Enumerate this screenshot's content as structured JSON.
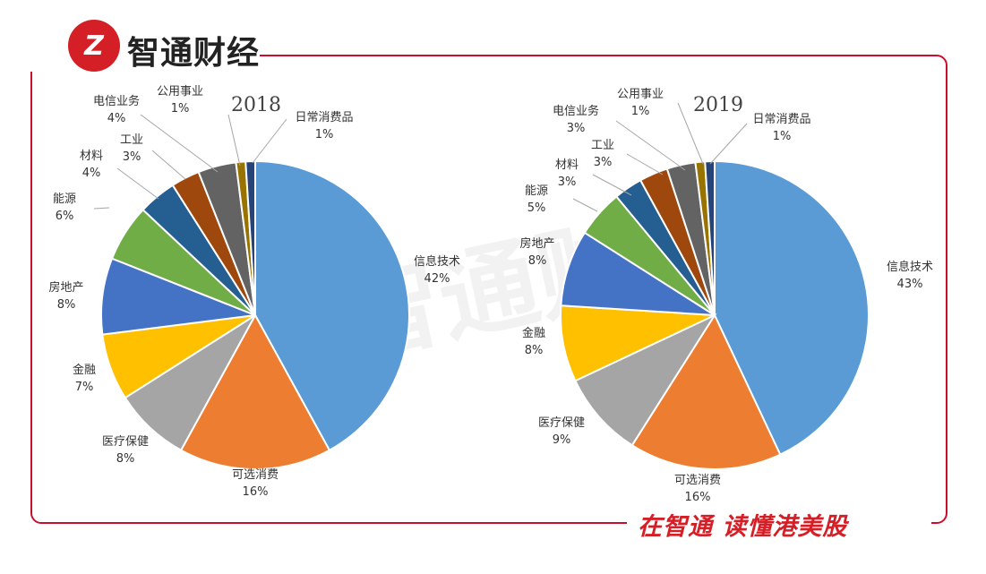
{
  "brand": {
    "logo_text": "Z",
    "name": "智通财经",
    "slogan": "在智通 读懂港美股"
  },
  "watermark": "智通财经",
  "chart_data": [
    {
      "type": "pie",
      "title": "2018",
      "slices": [
        {
          "label": "信息技术",
          "value": 42,
          "pct": "42%",
          "color": "#5b9bd5"
        },
        {
          "label": "可选消费",
          "value": 16,
          "pct": "16%",
          "color": "#ed7d31"
        },
        {
          "label": "医疗保健",
          "value": 8,
          "pct": "8%",
          "color": "#a5a5a5"
        },
        {
          "label": "金融",
          "value": 7,
          "pct": "7%",
          "color": "#ffc000"
        },
        {
          "label": "房地产",
          "value": 8,
          "pct": "8%",
          "color": "#4472c4"
        },
        {
          "label": "能源",
          "value": 6,
          "pct": "6%",
          "color": "#70ad47"
        },
        {
          "label": "材料",
          "value": 4,
          "pct": "4%",
          "color": "#255e91"
        },
        {
          "label": "工业",
          "value": 3,
          "pct": "3%",
          "color": "#9e480e"
        },
        {
          "label": "电信业务",
          "value": 4,
          "pct": "4%",
          "color": "#636363"
        },
        {
          "label": "公用事业",
          "value": 1,
          "pct": "1%",
          "color": "#997300"
        },
        {
          "label": "日常消费品",
          "value": 1,
          "pct": "1%",
          "color": "#264478"
        }
      ]
    },
    {
      "type": "pie",
      "title": "2019",
      "slices": [
        {
          "label": "信息技术",
          "value": 43,
          "pct": "43%",
          "color": "#5b9bd5"
        },
        {
          "label": "可选消费",
          "value": 16,
          "pct": "16%",
          "color": "#ed7d31"
        },
        {
          "label": "医疗保健",
          "value": 9,
          "pct": "9%",
          "color": "#a5a5a5"
        },
        {
          "label": "金融",
          "value": 8,
          "pct": "8%",
          "color": "#ffc000"
        },
        {
          "label": "房地产",
          "value": 8,
          "pct": "8%",
          "color": "#4472c4"
        },
        {
          "label": "能源",
          "value": 5,
          "pct": "5%",
          "color": "#70ad47"
        },
        {
          "label": "材料",
          "value": 3,
          "pct": "3%",
          "color": "#255e91"
        },
        {
          "label": "工业",
          "value": 3,
          "pct": "3%",
          "color": "#9e480e"
        },
        {
          "label": "电信业务",
          "value": 3,
          "pct": "3%",
          "color": "#636363"
        },
        {
          "label": "公用事业",
          "value": 1,
          "pct": "1%",
          "color": "#997300"
        },
        {
          "label": "日常消费品",
          "value": 1,
          "pct": "1%",
          "color": "#264478"
        }
      ]
    }
  ]
}
